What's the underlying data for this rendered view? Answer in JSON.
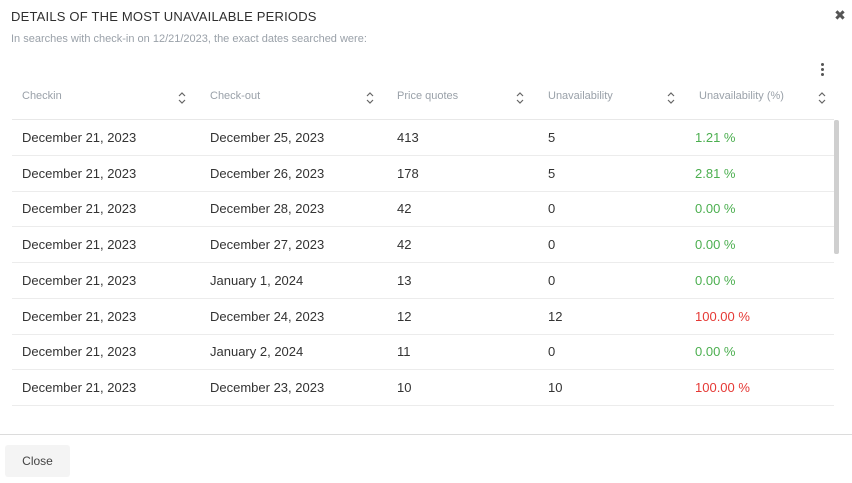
{
  "dialog": {
    "title": "DETAILS OF THE MOST UNAVAILABLE PERIODS",
    "subtitle": "In searches with check-in on 12/21/2023, the exact dates searched were:",
    "close_icon": "close-icon",
    "close_button_label": "Close"
  },
  "table": {
    "headers": [
      "Checkin",
      "Check-out",
      "Price quotes",
      "Unavailability",
      "Unavailability (%)"
    ],
    "rows": [
      {
        "checkin": "December 21, 2023",
        "checkout": "December 25, 2023",
        "quotes": "413",
        "unavail": "5",
        "pct": "1.21 %",
        "status": "green"
      },
      {
        "checkin": "December 21, 2023",
        "checkout": "December 26, 2023",
        "quotes": "178",
        "unavail": "5",
        "pct": "2.81 %",
        "status": "green"
      },
      {
        "checkin": "December 21, 2023",
        "checkout": "December 28, 2023",
        "quotes": "42",
        "unavail": "0",
        "pct": "0.00 %",
        "status": "green"
      },
      {
        "checkin": "December 21, 2023",
        "checkout": "December 27, 2023",
        "quotes": "42",
        "unavail": "0",
        "pct": "0.00 %",
        "status": "green"
      },
      {
        "checkin": "December 21, 2023",
        "checkout": "January 1, 2024",
        "quotes": "13",
        "unavail": "0",
        "pct": "0.00 %",
        "status": "green"
      },
      {
        "checkin": "December 21, 2023",
        "checkout": "December 24, 2023",
        "quotes": "12",
        "unavail": "12",
        "pct": "100.00 %",
        "status": "red"
      },
      {
        "checkin": "December 21, 2023",
        "checkout": "January 2, 2024",
        "quotes": "11",
        "unavail": "0",
        "pct": "0.00 %",
        "status": "green"
      },
      {
        "checkin": "December 21, 2023",
        "checkout": "December 23, 2023",
        "quotes": "10",
        "unavail": "10",
        "pct": "100.00 %",
        "status": "red"
      }
    ]
  },
  "colors": {
    "green": "#4caf50",
    "red": "#e53935",
    "muted": "#9aa1a9"
  }
}
